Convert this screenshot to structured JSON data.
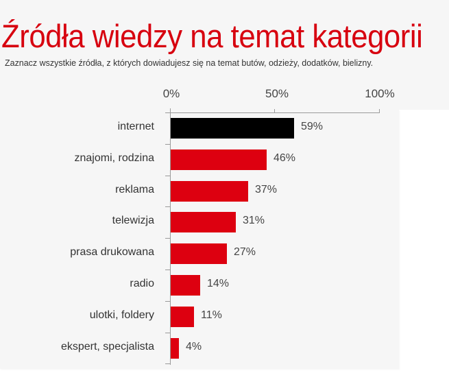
{
  "header": {
    "title": "Źródła wiedzy na temat kategorii",
    "subtitle": "Zaznacz wszystkie źródła, z których dowiadujesz się na temat butów, odzieży, dodatków, bielizny."
  },
  "colors": {
    "title": "#d7000f",
    "bar_default": "#dd0010",
    "bar_highlight": "#000000",
    "background": "#f6f6f6"
  },
  "axis": {
    "ticks": [
      "0%",
      "50%",
      "100%"
    ]
  },
  "rows": [
    {
      "label": "internet",
      "value": 59,
      "value_label": "59%",
      "highlight": true
    },
    {
      "label": "znajomi, rodzina",
      "value": 46,
      "value_label": "46%",
      "highlight": false
    },
    {
      "label": "reklama",
      "value": 37,
      "value_label": "37%",
      "highlight": false
    },
    {
      "label": "telewizja",
      "value": 31,
      "value_label": "31%",
      "highlight": false
    },
    {
      "label": "prasa drukowana",
      "value": 27,
      "value_label": "27%",
      "highlight": false
    },
    {
      "label": "radio",
      "value": 14,
      "value_label": "14%",
      "highlight": false
    },
    {
      "label": "ulotki, foldery",
      "value": 11,
      "value_label": "11%",
      "highlight": false
    },
    {
      "label": "ekspert, specjalista",
      "value": 4,
      "value_label": "4%",
      "highlight": false
    }
  ],
  "chart_data": {
    "type": "bar",
    "orientation": "horizontal",
    "title": "Źródła wiedzy na temat kategorii",
    "subtitle": "Zaznacz wszystkie źródła, z których dowiadujesz się na temat butów, odzieży, dodatków, bielizny.",
    "categories": [
      "internet",
      "znajomi, rodzina",
      "reklama",
      "telewizja",
      "prasa drukowana",
      "radio",
      "ulotki, foldery",
      "ekspert, specjalista"
    ],
    "values": [
      59,
      46,
      37,
      31,
      27,
      14,
      11,
      4
    ],
    "value_labels": [
      "59%",
      "46%",
      "37%",
      "31%",
      "27%",
      "14%",
      "11%",
      "4%"
    ],
    "xlabel": "",
    "ylabel": "",
    "xlim": [
      0,
      100
    ],
    "x_ticks": [
      "0%",
      "50%",
      "100%"
    ],
    "axis_position": "top",
    "grid": false,
    "legend": null,
    "highlighted_category": "internet"
  }
}
